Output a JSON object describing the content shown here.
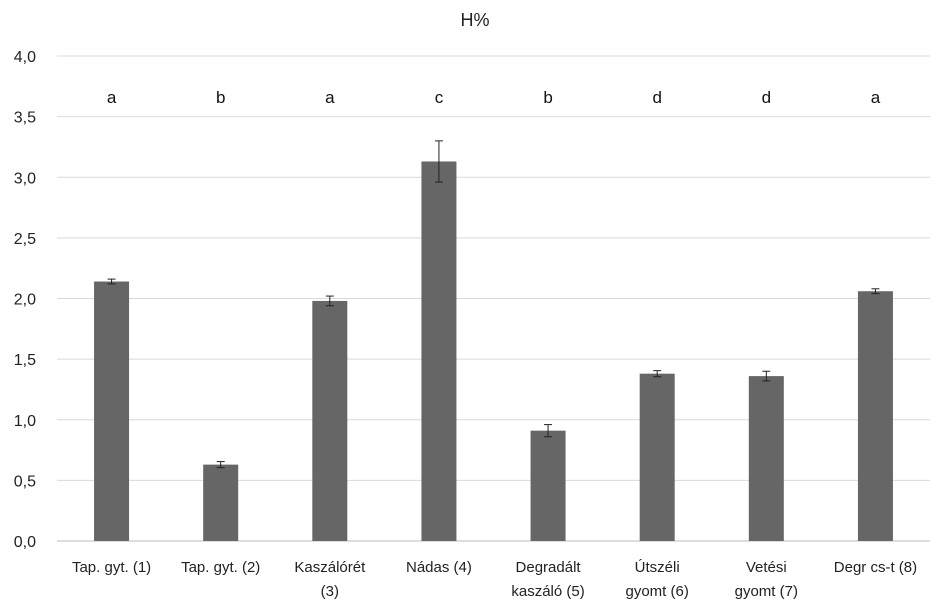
{
  "chart_data": {
    "type": "bar",
    "title": "H%",
    "xlabel": "",
    "ylabel": "",
    "ylim": [
      0,
      4
    ],
    "ytick_values": [
      0,
      0.5,
      1,
      1.5,
      2,
      2.5,
      3,
      3.5,
      4
    ],
    "ytick_labels": [
      "0,0",
      "0,5",
      "1,0",
      "1,5",
      "2,0",
      "2,5",
      "3,0",
      "3,5",
      "4,0"
    ],
    "grid": true,
    "legend": "none",
    "bar_color": "#666666",
    "categories": [
      [
        "Tap. gyt. (1)"
      ],
      [
        "Tap. gyt. (2)"
      ],
      [
        "Kaszálórét",
        "(3)"
      ],
      [
        "Nádas (4)"
      ],
      [
        "Degradált",
        "kaszáló (5)"
      ],
      [
        "Útszéli",
        "gyomt (6)"
      ],
      [
        "Vetési",
        "gyomt (7)"
      ],
      [
        "Degr cs-t (8)"
      ]
    ],
    "values": [
      2.14,
      0.63,
      1.98,
      3.13,
      0.91,
      1.38,
      1.36,
      2.06
    ],
    "errors": [
      0.02,
      0.025,
      0.04,
      0.17,
      0.05,
      0.025,
      0.04,
      0.02
    ],
    "significance_letters": [
      "a",
      "b",
      "a",
      "c",
      "b",
      "d",
      "d",
      "a"
    ]
  }
}
